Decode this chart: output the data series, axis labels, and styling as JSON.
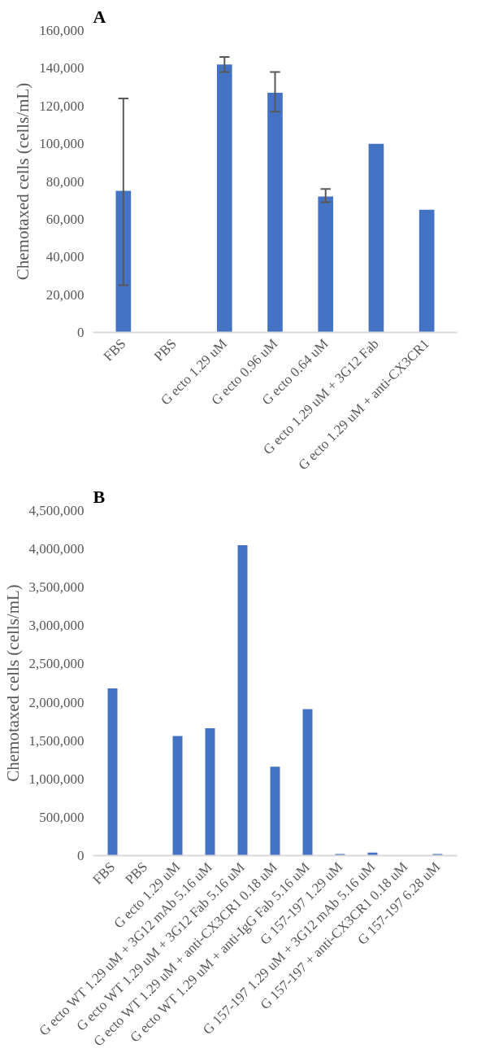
{
  "chart_data": [
    {
      "type": "bar",
      "title": "A",
      "ylabel": "Chemotaxed cells (cells/mL)",
      "categories": [
        "FBS",
        "PBS",
        "G ecto 1.29 uM",
        "G ecto 0.96 uM",
        "G ecto 0.64 uM",
        "G ecto 1.29 uM + 3G12 Fab",
        "G ecto 1.29 uM + anti-CX3CR1"
      ],
      "values": [
        75000,
        0,
        142000,
        127000,
        72000,
        100000,
        65000
      ],
      "errors": [
        [
          25000,
          124000
        ],
        null,
        [
          138000,
          146000
        ],
        [
          117000,
          138000
        ],
        [
          69000,
          76000
        ],
        null,
        null
      ],
      "color": "#4472c4",
      "ylim": [
        0,
        160000
      ],
      "yticks": [
        {
          "value": 0,
          "label": "0"
        },
        {
          "value": 20000,
          "label": "20,000"
        },
        {
          "value": 40000,
          "label": "40,000"
        },
        {
          "value": 60000,
          "label": "60,000"
        },
        {
          "value": 80000,
          "label": "80,000"
        },
        {
          "value": 100000,
          "label": "100,000"
        },
        {
          "value": 120000,
          "label": "120,000"
        },
        {
          "value": 140000,
          "label": "140,000"
        },
        {
          "value": 160000,
          "label": "160,000"
        }
      ],
      "grid": false
    },
    {
      "type": "bar",
      "title": "B",
      "ylabel": "Chemotaxed cells (cells/mL)",
      "categories": [
        "FBS",
        "PBS",
        "G ecto 1.29 uM",
        "G ecto WT 1.29 uM + 3G12 mAb 5.16 uM",
        "G ecto WT 1.29 uM + 3G12 Fab 5.16 uM",
        "G ecto WT 1.29 uM + anti-CX3CR1 0.18 uM",
        "G ecto WT 1.29 uM + anti-IgG Fab 5.16 uM",
        "G 157-197 1.29 uM",
        "G 157-197 1.29 uM + 3G12 mAb 5.16 uM",
        "G 157-197 + anti-CX3CR1 0.18 uM",
        "G 157-197 6.28 uM"
      ],
      "values": [
        2180000,
        0,
        1560000,
        1660000,
        4050000,
        1160000,
        1910000,
        20000,
        40000,
        0,
        20000
      ],
      "color": "#4472c4",
      "ylim": [
        0,
        4500000
      ],
      "yticks": [
        {
          "value": 0,
          "label": "0"
        },
        {
          "value": 500000,
          "label": "500,000"
        },
        {
          "value": 1000000,
          "label": "1,000,000"
        },
        {
          "value": 1500000,
          "label": "1,500,000"
        },
        {
          "value": 2000000,
          "label": "2,000,000"
        },
        {
          "value": 2500000,
          "label": "2,500,000"
        },
        {
          "value": 3000000,
          "label": "3,000,000"
        },
        {
          "value": 3500000,
          "label": "3,500,000"
        },
        {
          "value": 4000000,
          "label": "4,000,000"
        },
        {
          "value": 4500000,
          "label": "4,500,000"
        }
      ],
      "grid": false
    }
  ]
}
